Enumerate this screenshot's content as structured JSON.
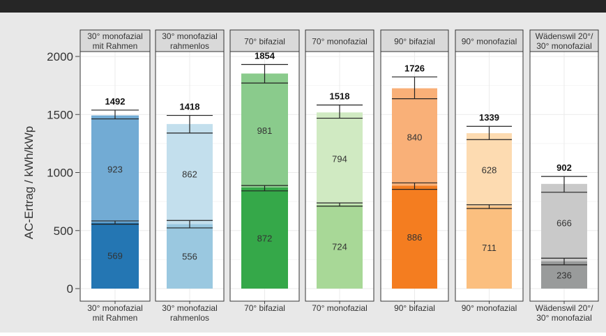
{
  "chart_data": {
    "type": "bar",
    "stacked": true,
    "faceted": true,
    "ylabel": "AC-Ertrag / kWh/kWp",
    "ylim": [
      0,
      2000
    ],
    "yticks": [
      0,
      500,
      1000,
      1500,
      2000
    ],
    "grid": true,
    "legend": "none",
    "facets": [
      {
        "strip": [
          "30° monofazial",
          "mit Rahmen"
        ],
        "xtick": [
          "30° monofazial",
          "mit Rahmen"
        ],
        "total": 1492,
        "total_err": [
          1462,
          1538
        ],
        "segments": [
          {
            "value": 569,
            "color": "#2476b3",
            "err": [
              555,
              583
            ]
          },
          {
            "value": 923,
            "color": "#72abd4",
            "err": [
              1462,
              1538
            ]
          }
        ]
      },
      {
        "strip": [
          "30° monofazial",
          "rahmenlos"
        ],
        "xtick": [
          "30° monofazial",
          "rahmenlos"
        ],
        "total": 1418,
        "total_err": [
          1340,
          1492
        ],
        "segments": [
          {
            "value": 556,
            "color": "#9ac8e0",
            "err": [
              523,
              587
            ]
          },
          {
            "value": 862,
            "color": "#c3dfed",
            "err": [
              1340,
              1492
            ]
          }
        ]
      },
      {
        "strip": [
          "70° bifazial"
        ],
        "xtick": [
          "70° bifazial"
        ],
        "total": 1854,
        "total_err": [
          1771,
          1931
        ],
        "segments": [
          {
            "value": 872,
            "color": "#35a849",
            "err": [
              842,
              888
            ]
          },
          {
            "value": 981,
            "color": "#8acb8c",
            "err": [
              1771,
              1931
            ]
          }
        ]
      },
      {
        "strip": [
          "70° monofazial"
        ],
        "xtick": [
          "70° monofazial"
        ],
        "total": 1518,
        "total_err": [
          1468,
          1582
        ],
        "segments": [
          {
            "value": 724,
            "color": "#a8d897",
            "err": [
              710,
              738
            ]
          },
          {
            "value": 794,
            "color": "#d0eac2",
            "err": [
              1468,
              1582
            ]
          }
        ]
      },
      {
        "strip": [
          "90° bifazial"
        ],
        "xtick": [
          "90° bifazial"
        ],
        "total": 1726,
        "total_err": [
          1636,
          1824
        ],
        "segments": [
          {
            "value": 886,
            "color": "#f47d20",
            "err": [
              855,
              911
            ]
          },
          {
            "value": 840,
            "color": "#f9b078",
            "err": [
              1636,
              1824
            ]
          }
        ]
      },
      {
        "strip": [
          "90° monofazial"
        ],
        "xtick": [
          "90° monofazial"
        ],
        "total": 1339,
        "total_err": [
          1284,
          1398
        ],
        "segments": [
          {
            "value": 711,
            "color": "#fbbf7f",
            "err": [
              690,
              722
            ]
          },
          {
            "value": 628,
            "color": "#fddbb1",
            "err": [
              1284,
              1398
            ]
          }
        ]
      },
      {
        "strip": [
          "Wädenswil 20°/",
          "30° monofazial"
        ],
        "xtick": [
          "Wädenswil 20°/",
          "30° monofazial"
        ],
        "total": 902,
        "total_err": [
          830,
          966
        ],
        "segments": [
          {
            "value": 236,
            "color": "#999b9b",
            "err": [
              205,
              262
            ]
          },
          {
            "value": 666,
            "color": "#c9c9c9",
            "err": [
              830,
              966
            ]
          }
        ]
      }
    ]
  }
}
